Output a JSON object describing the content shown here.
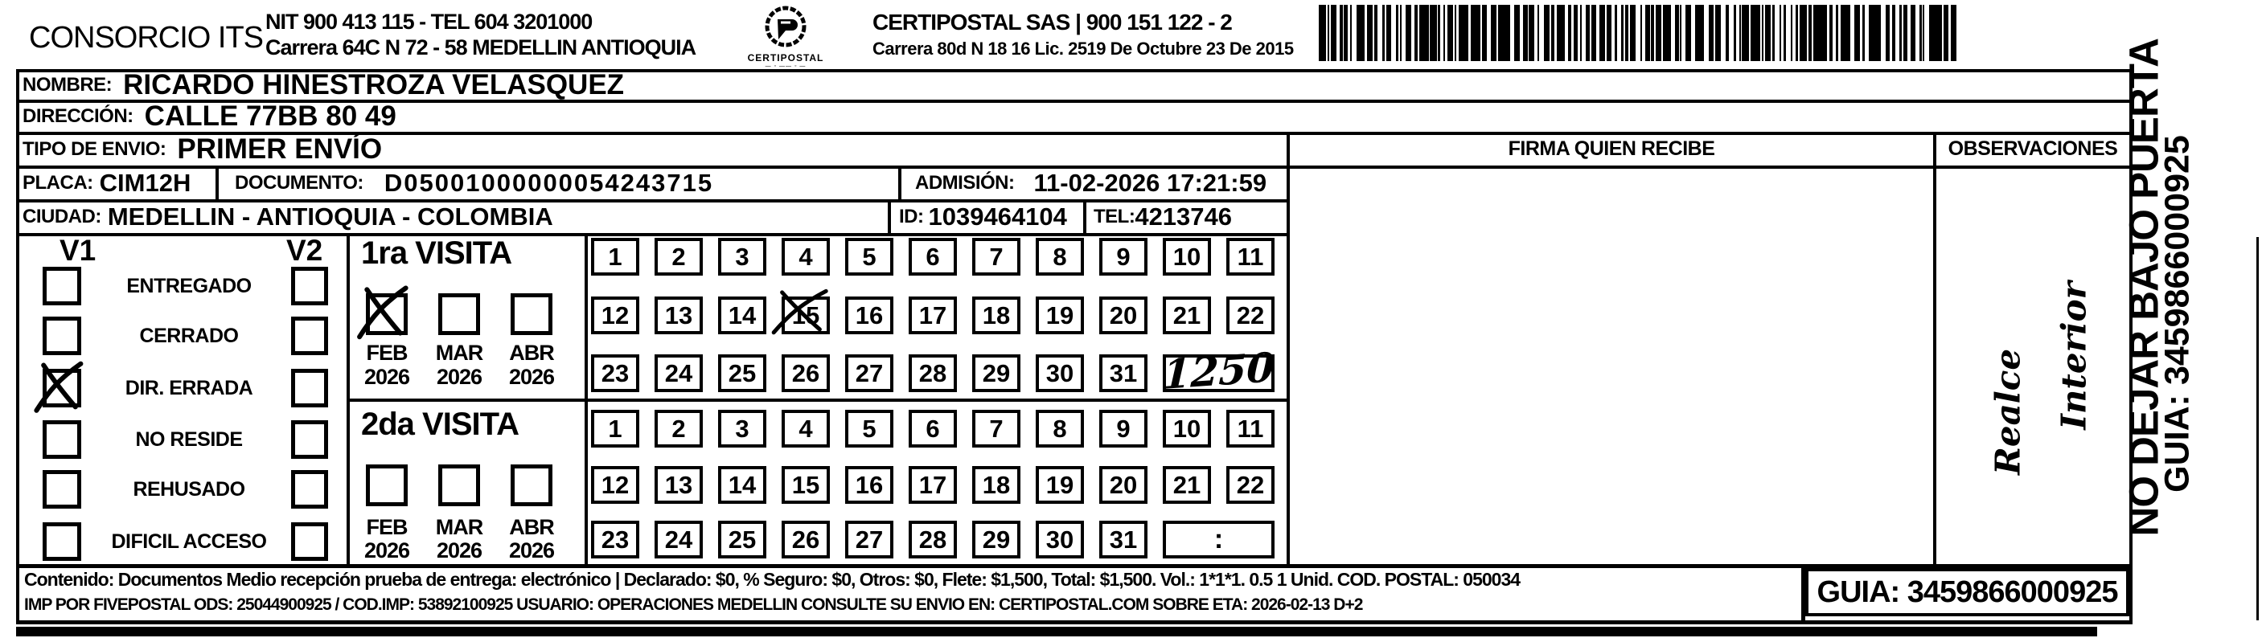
{
  "header": {
    "company_name": "CONSORCIO ITS",
    "company_nit_tel": "NIT 900 413 115 - TEL 604 3201000",
    "company_address": "Carrera 64C N 72 - 58 MEDELLIN ANTIOQUIA",
    "logo_caption": "CERTIPOSTAL",
    "partner_name": "CERTIPOSTAL SAS | 900 151 122 - 2",
    "partner_address": "Carrera 80d N 18 16  Lic. 2519 De Octubre 23 De 2015"
  },
  "recipient": {
    "nombre_label": "NOMBRE:",
    "nombre": "RICARDO HINESTROZA VELASQUEZ",
    "direccion_label": "DIRECCIÓN:",
    "direccion": "CALLE 77BB 80 49",
    "tipo_envio_label": "TIPO DE ENVIO:",
    "tipo_envio": "PRIMER ENVÍO",
    "placa_label": "PLACA:",
    "placa": "CIM12H",
    "documento_label": "DOCUMENTO:",
    "documento": "D05001000000054243715",
    "admision_label": "ADMISIÓN:",
    "admision": "11-02-2026 17:21:59",
    "ciudad_label": "CIUDAD:",
    "ciudad": "MEDELLIN - ANTIOQUIA - COLOMBIA",
    "id_label": "ID:",
    "id_value": "1039464104",
    "tel_label": "TEL:",
    "tel_value": "4213746"
  },
  "status_panel": {
    "v1_header": "V1",
    "v2_header": "V2",
    "items": [
      {
        "label": "ENTREGADO",
        "v1_checked": false,
        "v2_checked": false
      },
      {
        "label": "CERRADO",
        "v1_checked": false,
        "v2_checked": false
      },
      {
        "label": "DIR. ERRADA",
        "v1_checked": true,
        "v2_checked": false
      },
      {
        "label": "NO RESIDE",
        "v1_checked": false,
        "v2_checked": false
      },
      {
        "label": "REHUSADO",
        "v1_checked": false,
        "v2_checked": false
      },
      {
        "label": "DIFICIL ACCESO",
        "v1_checked": false,
        "v2_checked": false
      }
    ]
  },
  "visits": {
    "first": {
      "title": "1ra VISITA",
      "months": [
        {
          "name": "FEB",
          "year": "2026",
          "checked": true
        },
        {
          "name": "MAR",
          "year": "2026",
          "checked": false
        },
        {
          "name": "ABR",
          "year": "2026",
          "checked": false
        }
      ],
      "days": [
        "1",
        "2",
        "3",
        "4",
        "5",
        "6",
        "7",
        "8",
        "9",
        "10",
        "11",
        "12",
        "13",
        "14",
        "15",
        "16",
        "17",
        "18",
        "19",
        "20",
        "21",
        "22",
        "23",
        "24",
        "25",
        "26",
        "27",
        "28",
        "29",
        "30",
        "31"
      ],
      "crossed_day": "15",
      "time_handwriting": "1250",
      "time_text": ""
    },
    "second": {
      "title": "2da VISITA",
      "months": [
        {
          "name": "FEB",
          "year": "2026",
          "checked": false
        },
        {
          "name": "MAR",
          "year": "2026",
          "checked": false
        },
        {
          "name": "ABR",
          "year": "2026",
          "checked": false
        }
      ],
      "days": [
        "1",
        "2",
        "3",
        "4",
        "5",
        "6",
        "7",
        "8",
        "9",
        "10",
        "11",
        "12",
        "13",
        "14",
        "15",
        "16",
        "17",
        "18",
        "19",
        "20",
        "21",
        "22",
        "23",
        "24",
        "25",
        "26",
        "27",
        "28",
        "29",
        "30",
        "31"
      ],
      "crossed_day": "",
      "time_handwriting": "",
      "time_text": ":"
    }
  },
  "signature": {
    "header": "FIRMA QUIEN RECIBE"
  },
  "observations": {
    "header": "OBSERVACIONES",
    "handwriting_word1": "Realce",
    "handwriting_word2": "Interior"
  },
  "side_strip": {
    "warning": "NO DEJAR BAJO PUERTA",
    "guia": "GUIA: 3459866000925"
  },
  "footer": {
    "line1": "Contenido: Documentos Medio recepción prueba de entrega: electrónico | Declarado: $0, % Seguro: $0, Otros: $0, Flete: $1,500, Total: $1,500. Vol.: 1*1*1. 0.5  1 Unid. COD. POSTAL: 050034",
    "line2": "IMP POR FIVEPOSTAL ODS: 25044900925 / COD.IMP: 53892100925 USUARIO: OPERACIONES MEDELLIN CONSULTE SU ENVIO EN: CERTIPOSTAL.COM SOBRE ETA: 2026-02-13 D+2",
    "guia_box": "GUIA: 3459866000925"
  }
}
